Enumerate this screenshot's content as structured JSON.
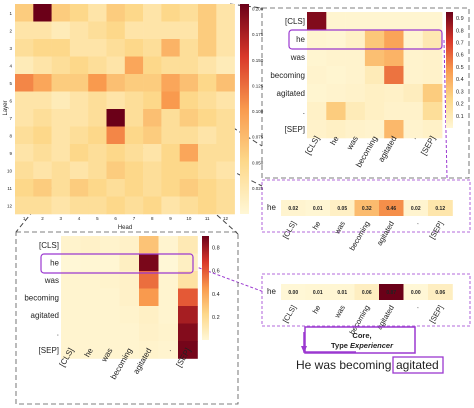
{
  "big_map": {
    "ylabel": "Layer",
    "xlabel": "Head",
    "layer_ticks": [
      "1",
      "2",
      "3",
      "4",
      "5",
      "6",
      "7",
      "8",
      "9",
      "10",
      "11",
      "12"
    ],
    "head_ticks": [
      "1",
      "2",
      "3",
      "4",
      "5",
      "6",
      "7",
      "8",
      "9",
      "10",
      "11",
      "12"
    ],
    "colorbar_ticks": [
      "0.200",
      "0.175",
      "0.150",
      "0.125",
      "0.100",
      "0.075",
      "0.050",
      "0.025"
    ],
    "values": [
      [
        0.06,
        0.2,
        0.06,
        0.05,
        0.03,
        0.06,
        0.05,
        0.03,
        0.05,
        0.04,
        0.06,
        0.03
      ],
      [
        0.03,
        0.03,
        0.02,
        0.03,
        0.04,
        0.05,
        0.03,
        0.03,
        0.03,
        0.03,
        0.06,
        0.03
      ],
      [
        0.04,
        0.05,
        0.05,
        0.03,
        0.03,
        0.04,
        0.05,
        0.04,
        0.08,
        0.04,
        0.06,
        0.03
      ],
      [
        0.02,
        0.03,
        0.04,
        0.05,
        0.04,
        0.03,
        0.09,
        0.05,
        0.04,
        0.04,
        0.03,
        0.02
      ],
      [
        0.11,
        0.09,
        0.06,
        0.06,
        0.1,
        0.07,
        0.06,
        0.06,
        0.09,
        0.07,
        0.05,
        0.07
      ],
      [
        0.03,
        0.03,
        0.02,
        0.03,
        0.04,
        0.03,
        0.04,
        0.05,
        0.1,
        0.05,
        0.04,
        0.03
      ],
      [
        0.03,
        0.04,
        0.03,
        0.03,
        0.04,
        0.2,
        0.04,
        0.07,
        0.04,
        0.06,
        0.05,
        0.04
      ],
      [
        0.04,
        0.05,
        0.03,
        0.04,
        0.05,
        0.11,
        0.05,
        0.06,
        0.04,
        0.04,
        0.03,
        0.04
      ],
      [
        0.03,
        0.04,
        0.03,
        0.05,
        0.04,
        0.05,
        0.04,
        0.03,
        0.05,
        0.09,
        0.04,
        0.04
      ],
      [
        0.04,
        0.03,
        0.04,
        0.03,
        0.04,
        0.06,
        0.05,
        0.04,
        0.05,
        0.05,
        0.04,
        0.03
      ],
      [
        0.05,
        0.06,
        0.04,
        0.06,
        0.05,
        0.04,
        0.05,
        0.04,
        0.05,
        0.06,
        0.05,
        0.04
      ],
      [
        0.04,
        0.04,
        0.03,
        0.04,
        0.04,
        0.05,
        0.04,
        0.05,
        0.03,
        0.04,
        0.05,
        0.04
      ]
    ]
  },
  "tokens": [
    "[CLS]",
    "he",
    "was",
    "becoming",
    "agitated",
    ".",
    "[SEP]"
  ],
  "top_map": {
    "highlight_label": "he",
    "colorbar_ticks": [
      "0.9",
      "0.8",
      "0.7",
      "0.6",
      "0.5",
      "0.4",
      "0.3",
      "0.2",
      "0.1"
    ],
    "values": [
      [
        0.95,
        0.02,
        0.02,
        0.02,
        0.02,
        0.02,
        0.02
      ],
      [
        0.02,
        0.01,
        0.05,
        0.32,
        0.46,
        0.02,
        0.12
      ],
      [
        0.02,
        0.03,
        0.03,
        0.35,
        0.4,
        0.03,
        0.04
      ],
      [
        0.03,
        0.02,
        0.03,
        0.1,
        0.6,
        0.03,
        0.04
      ],
      [
        0.02,
        0.03,
        0.04,
        0.06,
        0.05,
        0.08,
        0.3
      ],
      [
        0.05,
        0.3,
        0.1,
        0.06,
        0.04,
        0.04,
        0.2
      ],
      [
        0.04,
        0.06,
        0.04,
        0.03,
        0.38,
        0.03,
        0.05
      ]
    ]
  },
  "bottom_map": {
    "highlight_label": "he",
    "colorbar_ticks": [
      "0.8",
      "0.6",
      "0.4",
      "0.2"
    ],
    "values": [
      [
        0.03,
        0.04,
        0.03,
        0.04,
        0.3,
        0.02,
        0.1
      ],
      [
        0.0,
        0.01,
        0.01,
        0.06,
        0.87,
        0.0,
        0.06
      ],
      [
        0.02,
        0.02,
        0.03,
        0.04,
        0.55,
        0.02,
        0.15
      ],
      [
        0.02,
        0.02,
        0.02,
        0.04,
        0.45,
        0.02,
        0.6
      ],
      [
        0.02,
        0.02,
        0.02,
        0.03,
        0.05,
        0.02,
        0.78
      ],
      [
        0.02,
        0.02,
        0.02,
        0.02,
        0.04,
        0.03,
        0.85
      ],
      [
        0.02,
        0.02,
        0.02,
        0.02,
        0.03,
        0.02,
        0.88
      ]
    ]
  },
  "he_row_1": {
    "label": "he",
    "values": [
      "0.02",
      "0.01",
      "0.05",
      "0.32",
      "0.46",
      "0.02",
      "0.12"
    ],
    "intensity": [
      0.02,
      0.01,
      0.05,
      0.32,
      0.46,
      0.02,
      0.12
    ]
  },
  "he_row_2": {
    "label": "he",
    "values": [
      "0.00",
      "0.01",
      "0.01",
      "0.06",
      "0.87",
      "0.00",
      "0.06"
    ],
    "intensity": [
      0.0,
      0.01,
      0.01,
      0.06,
      0.87,
      0.0,
      0.06
    ]
  },
  "annotation": {
    "line1": "Core,",
    "line2_prefix": "Type ",
    "line2_italic": "Experiencer",
    "sentence": "He was becoming",
    "highlighted_word": "agitated"
  },
  "colors": {
    "accent_purple": "#9b38d0",
    "dashed_gray": "#444444"
  }
}
